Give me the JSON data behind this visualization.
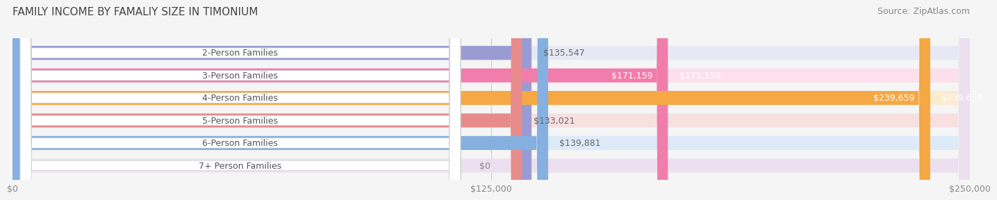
{
  "title": "FAMILY INCOME BY FAMALIY SIZE IN TIMONIUM",
  "source": "Source: ZipAtlas.com",
  "categories": [
    "2-Person Families",
    "3-Person Families",
    "4-Person Families",
    "5-Person Families",
    "6-Person Families",
    "7+ Person Families"
  ],
  "values": [
    135547,
    171159,
    239659,
    133021,
    139881,
    0
  ],
  "bar_colors": [
    "#9b9bd4",
    "#f07dab",
    "#f5a843",
    "#e88b8b",
    "#85b0e0",
    "#c9a8d4"
  ],
  "bar_bg_colors": [
    "#e8e8f5",
    "#fde0ec",
    "#fdebd0",
    "#f9e0e0",
    "#ddeaf8",
    "#ece0f0"
  ],
  "value_labels": [
    "$135,547",
    "$171,159",
    "$239,659",
    "$133,021",
    "$139,881",
    "$0"
  ],
  "value_label_colors": [
    "#666666",
    "#ffffff",
    "#ffffff",
    "#666666",
    "#666666",
    "#666666"
  ],
  "xlim": [
    0,
    250000
  ],
  "xticks": [
    0,
    125000,
    250000
  ],
  "xticklabels": [
    "$0",
    "$125,000",
    "$250,000"
  ],
  "background_color": "#f5f5f5",
  "bar_bg_color": "#ececec",
  "title_fontsize": 11,
  "source_fontsize": 9,
  "label_fontsize": 9,
  "tick_fontsize": 9
}
